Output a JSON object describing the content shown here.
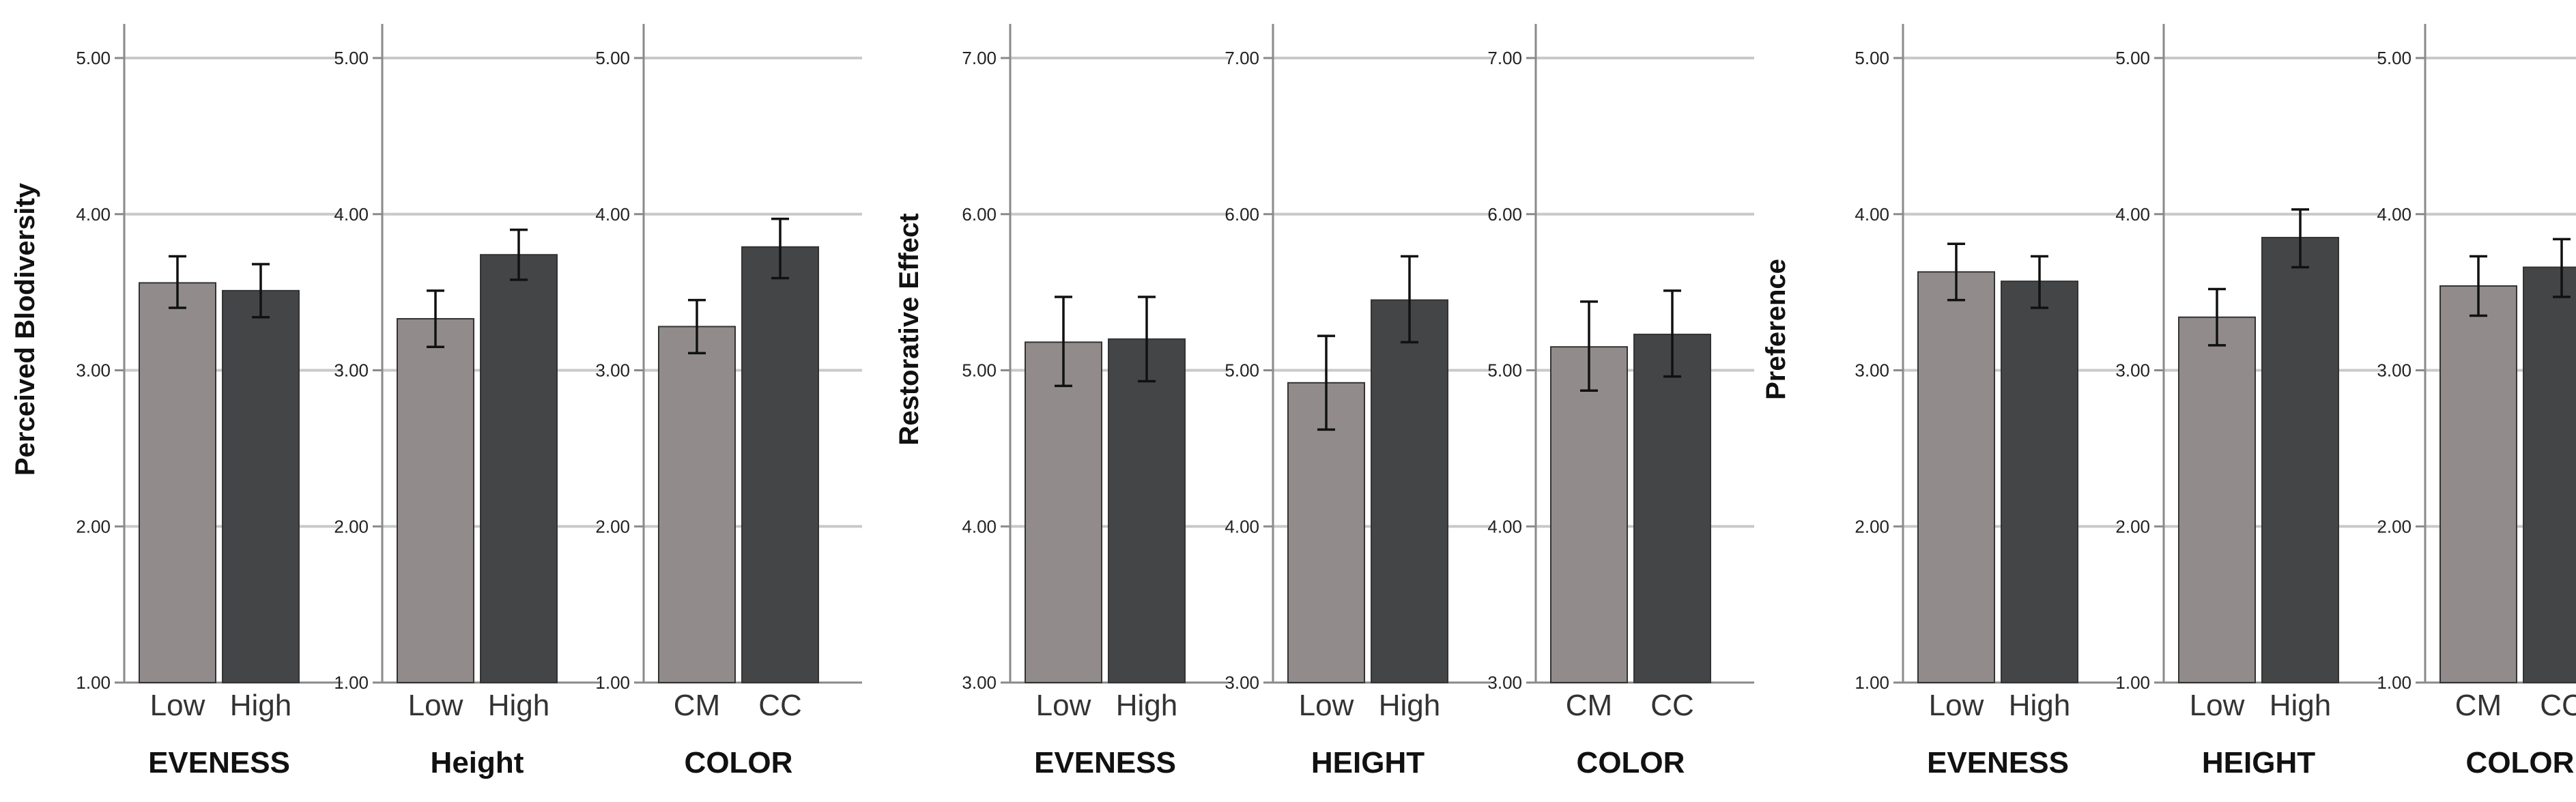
{
  "colors": {
    "low": "#918c8b",
    "high": "#434547",
    "grid": "#c9c9c9",
    "axis": "#8a8a8a"
  },
  "chart_data": [
    {
      "type": "bar",
      "ylabel": "Perceived Blodiversity",
      "panels": [
        {
          "title": "EVENESS",
          "ylim": [
            1,
            5
          ],
          "ticks": [
            "1.00",
            "2.00",
            "3.00",
            "4.00",
            "5.00"
          ],
          "categories": [
            "Low",
            "High"
          ],
          "values": [
            3.56,
            3.51
          ],
          "errors": [
            [
              3.4,
              3.73
            ],
            [
              3.34,
              3.68
            ]
          ]
        },
        {
          "title": "Height",
          "ylim": [
            1,
            5
          ],
          "ticks": [
            "1.00",
            "2.00",
            "3.00",
            "4.00",
            "5.00"
          ],
          "categories": [
            "Low",
            "High"
          ],
          "values": [
            3.33,
            3.74
          ],
          "errors": [
            [
              3.15,
              3.51
            ],
            [
              3.58,
              3.9
            ]
          ]
        },
        {
          "title": "COLOR",
          "ylim": [
            1,
            5
          ],
          "ticks": [
            "1.00",
            "2.00",
            "3.00",
            "4.00",
            "5.00"
          ],
          "categories": [
            "CM",
            "CC"
          ],
          "values": [
            3.28,
            3.79
          ],
          "errors": [
            [
              3.11,
              3.45
            ],
            [
              3.59,
              3.97
            ]
          ]
        }
      ]
    },
    {
      "type": "bar",
      "ylabel": "Restorative Effect",
      "panels": [
        {
          "title": "EVENESS",
          "ylim": [
            3,
            7
          ],
          "ticks": [
            "3.00",
            "4.00",
            "5.00",
            "6.00",
            "7.00"
          ],
          "categories": [
            "Low",
            "High"
          ],
          "values": [
            5.18,
            5.2
          ],
          "errors": [
            [
              4.9,
              5.47
            ],
            [
              4.93,
              5.47
            ]
          ]
        },
        {
          "title": "HEIGHT",
          "ylim": [
            3,
            7
          ],
          "ticks": [
            "3.00",
            "4.00",
            "5.00",
            "6.00",
            "7.00"
          ],
          "categories": [
            "Low",
            "High"
          ],
          "values": [
            4.92,
            5.45
          ],
          "errors": [
            [
              4.62,
              5.22
            ],
            [
              5.18,
              5.73
            ]
          ]
        },
        {
          "title": "COLOR",
          "ylim": [
            3,
            7
          ],
          "ticks": [
            "3.00",
            "4.00",
            "5.00",
            "6.00",
            "7.00"
          ],
          "categories": [
            "CM",
            "CC"
          ],
          "values": [
            5.15,
            5.23
          ],
          "errors": [
            [
              4.87,
              5.44
            ],
            [
              4.96,
              5.51
            ]
          ]
        }
      ]
    },
    {
      "type": "bar",
      "ylabel": "Preference",
      "panels": [
        {
          "title": "EVENESS",
          "ylim": [
            1,
            5
          ],
          "ticks": [
            "1.00",
            "2.00",
            "3.00",
            "4.00",
            "5.00"
          ],
          "categories": [
            "Low",
            "High"
          ],
          "values": [
            3.63,
            3.57
          ],
          "errors": [
            [
              3.45,
              3.81
            ],
            [
              3.4,
              3.73
            ]
          ]
        },
        {
          "title": "HEIGHT",
          "ylim": [
            1,
            5
          ],
          "ticks": [
            "1.00",
            "2.00",
            "3.00",
            "4.00",
            "5.00"
          ],
          "categories": [
            "Low",
            "High"
          ],
          "values": [
            3.34,
            3.85
          ],
          "errors": [
            [
              3.16,
              3.52
            ],
            [
              3.66,
              4.03
            ]
          ]
        },
        {
          "title": "COLOR",
          "ylim": [
            1,
            5
          ],
          "ticks": [
            "1.00",
            "2.00",
            "3.00",
            "4.00",
            "5.00"
          ],
          "categories": [
            "CM",
            "CC"
          ],
          "values": [
            3.54,
            3.66
          ],
          "errors": [
            [
              3.35,
              3.73
            ],
            [
              3.47,
              3.84
            ]
          ]
        }
      ]
    }
  ]
}
